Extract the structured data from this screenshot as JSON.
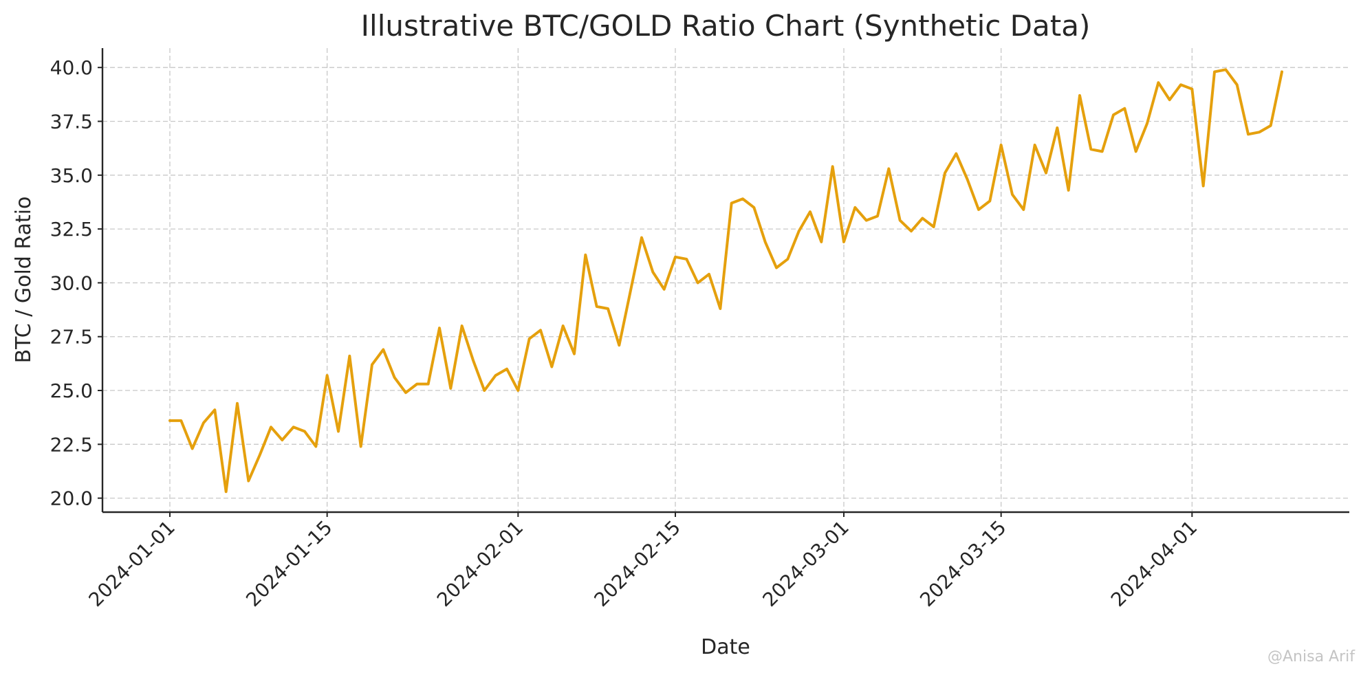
{
  "chart_data": {
    "type": "line",
    "title": "Illustrative BTC/GOLD Ratio Chart (Synthetic Data)",
    "xlabel": "Date",
    "ylabel": "BTC / Gold Ratio",
    "start_date": "2024-01-01",
    "x_ticks": [
      "2024-01-01",
      "2024-01-15",
      "2024-02-01",
      "2024-02-15",
      "2024-03-01",
      "2024-03-15",
      "2024-04-01"
    ],
    "xlim": [
      "2023-12-26",
      "2024-04-15"
    ],
    "y_ticks": [
      20.0,
      22.5,
      25.0,
      27.5,
      30.0,
      32.5,
      35.0,
      37.5,
      40.0
    ],
    "ylim": [
      19.35,
      40.9
    ],
    "grid": true,
    "color": "#e5a00d",
    "series": [
      {
        "values": [
          23.6,
          23.6,
          22.3,
          23.5,
          24.1,
          20.3,
          24.4,
          20.8,
          22.0,
          23.3,
          22.7,
          23.3,
          23.1,
          22.4,
          25.7,
          23.1,
          26.6,
          22.4,
          26.2,
          26.9,
          25.6,
          24.9,
          25.3,
          25.3,
          27.9,
          25.1,
          28.0,
          26.4,
          25.0,
          25.7,
          26.0,
          25.0,
          27.4,
          27.8,
          26.1,
          28.0,
          26.7,
          31.3,
          28.9,
          28.8,
          27.1,
          29.6,
          32.1,
          30.5,
          29.7,
          31.2,
          31.1,
          30.0,
          30.4,
          28.8,
          33.7,
          33.9,
          33.5,
          31.9,
          30.7,
          31.1,
          32.4,
          33.3,
          31.9,
          35.4,
          31.9,
          33.5,
          32.9,
          33.1,
          35.3,
          32.9,
          32.4,
          33.0,
          32.6,
          35.1,
          36.0,
          34.8,
          33.4,
          33.8,
          36.4,
          34.1,
          33.4,
          36.4,
          35.1,
          37.2,
          34.3,
          38.7,
          36.2,
          36.1,
          37.8,
          38.1,
          36.1,
          37.4,
          39.3,
          38.5,
          39.2,
          39.0,
          34.5,
          39.8,
          39.9,
          39.2,
          36.9,
          37.0,
          37.3,
          39.8
        ]
      }
    ]
  },
  "watermark": "@Anisa Arif"
}
